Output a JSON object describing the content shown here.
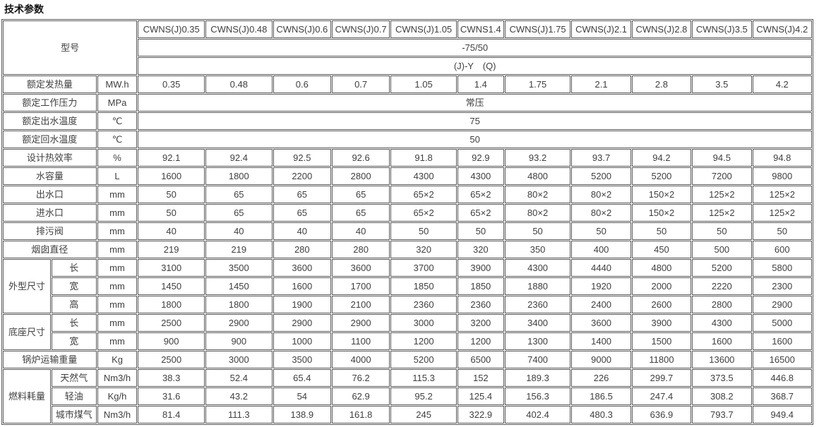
{
  "title": "技术参数",
  "table": {
    "model_label": "型号",
    "columns": [
      "CWNS(J)0.35",
      "CWNS(J)0.48",
      "CWNS(J)0.6",
      "CWNS(J)0.7",
      "CWNS(J)1.05",
      "CWNS1.4",
      "CWNS(J)1.75",
      "CWNS(J)2.1",
      "CWNS(J)2.8",
      "CWNS(J)3.5",
      "CWNS(J)4.2"
    ],
    "header_merged_rows": [
      "-75/50",
      "(J)-Y　(Q)"
    ],
    "rows": [
      {
        "kind": "data",
        "label": "额定发热量",
        "unit": "MW.h",
        "values": [
          "0.35",
          "0.48",
          "0.6",
          "0.7",
          "1.05",
          "1.4",
          "1.75",
          "2.1",
          "2.8",
          "3.5",
          "4.2"
        ]
      },
      {
        "kind": "span",
        "label": "额定工作压力",
        "unit": "MPa",
        "value": "常压"
      },
      {
        "kind": "span",
        "label": "额定出水温度",
        "unit": "℃",
        "value": "75"
      },
      {
        "kind": "span",
        "label": "额定回水温度",
        "unit": "℃",
        "value": "50"
      },
      {
        "kind": "data",
        "label": "设计热效率",
        "unit": "%",
        "values": [
          "92.1",
          "92.4",
          "92.5",
          "92.6",
          "91.8",
          "92.9",
          "93.2",
          "93.7",
          "94.2",
          "94.5",
          "94.8"
        ]
      },
      {
        "kind": "data",
        "label": "水容量",
        "unit": "L",
        "values": [
          "1600",
          "1800",
          "2200",
          "2800",
          "4300",
          "4300",
          "4800",
          "5200",
          "5200",
          "7200",
          "9800"
        ]
      },
      {
        "kind": "data",
        "label": "出水口",
        "unit": "mm",
        "values": [
          "50",
          "65",
          "65",
          "65",
          "65×2",
          "65×2",
          "80×2",
          "80×2",
          "150×2",
          "125×2",
          "125×2"
        ]
      },
      {
        "kind": "data",
        "label": "进水口",
        "unit": "mm",
        "values": [
          "50",
          "65",
          "65",
          "65",
          "65×2",
          "65×2",
          "80×2",
          "80×2",
          "150×2",
          "125×2",
          "125×2"
        ]
      },
      {
        "kind": "data",
        "label": "排污阀",
        "unit": "mm",
        "values": [
          "40",
          "40",
          "40",
          "40",
          "50",
          "50",
          "50",
          "50",
          "50",
          "50",
          "50"
        ]
      },
      {
        "kind": "data",
        "label": "烟囱直径",
        "unit": "mm",
        "values": [
          "219",
          "219",
          "280",
          "280",
          "320",
          "320",
          "350",
          "400",
          "450",
          "500",
          "600"
        ]
      },
      {
        "kind": "group",
        "label": "外型尺寸",
        "subrows": [
          {
            "label": "长",
            "unit": "mm",
            "values": [
              "3100",
              "3500",
              "3600",
              "3600",
              "3700",
              "3900",
              "4300",
              "4440",
              "4800",
              "5200",
              "5800"
            ]
          },
          {
            "label": "宽",
            "unit": "mm",
            "values": [
              "1450",
              "1450",
              "1600",
              "1700",
              "1850",
              "1850",
              "1880",
              "1920",
              "2000",
              "2220",
              "2300"
            ]
          },
          {
            "label": "高",
            "unit": "mm",
            "values": [
              "1800",
              "1800",
              "1900",
              "2100",
              "2360",
              "2360",
              "2360",
              "2400",
              "2600",
              "2800",
              "2900"
            ]
          }
        ]
      },
      {
        "kind": "group",
        "label": "底座尺寸",
        "subrows": [
          {
            "label": "长",
            "unit": "mm",
            "values": [
              "2500",
              "2900",
              "2900",
              "2900",
              "3000",
              "3200",
              "3400",
              "3600",
              "3900",
              "4300",
              "5000"
            ]
          },
          {
            "label": "宽",
            "unit": "mm",
            "values": [
              "900",
              "900",
              "1000",
              "1100",
              "1200",
              "1200",
              "1300",
              "1400",
              "1500",
              "1600",
              "1600"
            ]
          }
        ]
      },
      {
        "kind": "data",
        "label": "锅炉运输重量",
        "unit": "Kg",
        "values": [
          "2500",
          "3000",
          "3500",
          "4000",
          "5200",
          "6500",
          "7400",
          "9000",
          "11800",
          "13600",
          "16500"
        ]
      },
      {
        "kind": "group",
        "label": "燃料耗量",
        "subrows": [
          {
            "label": "天然气",
            "unit": "Nm3/h",
            "values": [
              "38.3",
              "52.4",
              "65.4",
              "76.2",
              "115.3",
              "152",
              "189.3",
              "226",
              "299.7",
              "373.5",
              "446.8"
            ]
          },
          {
            "label": "轻油",
            "unit": "Kg/h",
            "values": [
              "31.6",
              "43.2",
              "54",
              "62.9",
              "95.2",
              "125.4",
              "156.3",
              "186.5",
              "247.4",
              "308.2",
              "368.7"
            ]
          },
          {
            "label": "城市煤气",
            "unit": "Nm3/h",
            "values": [
              "81.4",
              "111.3",
              "138.9",
              "161.8",
              "245",
              "322.9",
              "402.4",
              "480.3",
              "636.9",
              "793.7",
              "949.4"
            ]
          }
        ]
      }
    ]
  }
}
